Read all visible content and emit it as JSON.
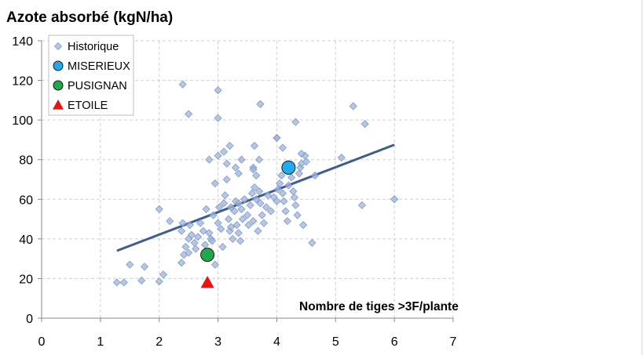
{
  "chart_data": {
    "type": "scatter",
    "title": "Azote absorbé (kgN/ha)",
    "xlabel": "Nombre de tiges >3F/plante",
    "ylabel": "",
    "xlim": [
      0,
      7
    ],
    "ylim": [
      0,
      140
    ],
    "x_ticks": [
      "0",
      "1",
      "2",
      "3",
      "4",
      "5",
      "6",
      "7"
    ],
    "y_ticks": [
      "0",
      "20",
      "40",
      "60",
      "80",
      "100",
      "120",
      "140"
    ],
    "grid": true,
    "legend_position": "top-left",
    "series": [
      {
        "name": "Historique",
        "marker": "diamond",
        "color": "#9db4de",
        "points": [
          [
            1.28,
            18
          ],
          [
            1.4,
            18
          ],
          [
            1.5,
            27
          ],
          [
            1.7,
            19
          ],
          [
            1.75,
            26
          ],
          [
            2.0,
            18.5
          ],
          [
            2.07,
            22
          ],
          [
            2.0,
            55
          ],
          [
            2.18,
            49
          ],
          [
            2.38,
            28
          ],
          [
            2.38,
            44
          ],
          [
            2.4,
            48
          ],
          [
            2.42,
            32
          ],
          [
            2.45,
            36
          ],
          [
            2.5,
            40
          ],
          [
            2.5,
            33
          ],
          [
            2.52,
            47
          ],
          [
            2.55,
            42
          ],
          [
            2.6,
            38
          ],
          [
            2.62,
            35
          ],
          [
            2.66,
            41
          ],
          [
            2.7,
            48
          ],
          [
            2.75,
            44
          ],
          [
            2.78,
            37
          ],
          [
            2.8,
            55
          ],
          [
            2.85,
            43
          ],
          [
            2.88,
            40
          ],
          [
            2.9,
            39
          ],
          [
            2.92,
            52
          ],
          [
            2.95,
            68
          ],
          [
            3.0,
            48
          ],
          [
            3.02,
            56
          ],
          [
            3.05,
            45
          ],
          [
            3.08,
            36
          ],
          [
            3.1,
            58
          ],
          [
            3.12,
            62
          ],
          [
            3.15,
            70
          ],
          [
            3.18,
            50
          ],
          [
            3.2,
            44
          ],
          [
            3.22,
            46
          ],
          [
            3.25,
            40
          ],
          [
            3.28,
            54
          ],
          [
            3.3,
            59
          ],
          [
            3.32,
            47
          ],
          [
            3.35,
            43
          ],
          [
            3.38,
            39
          ],
          [
            3.4,
            55
          ],
          [
            3.42,
            50
          ],
          [
            3.45,
            60
          ],
          [
            3.5,
            52
          ],
          [
            3.52,
            47
          ],
          [
            3.55,
            57
          ],
          [
            3.58,
            63
          ],
          [
            3.6,
            49
          ],
          [
            3.62,
            66
          ],
          [
            3.65,
            60
          ],
          [
            3.68,
            44
          ],
          [
            3.7,
            64
          ],
          [
            3.72,
            58
          ],
          [
            3.75,
            52
          ],
          [
            3.78,
            48
          ],
          [
            3.82,
            56
          ],
          [
            3.85,
            62
          ],
          [
            3.9,
            54
          ],
          [
            3.95,
            61
          ],
          [
            4.0,
            59
          ],
          [
            4.02,
            65
          ],
          [
            4.05,
            68
          ],
          [
            4.08,
            72
          ],
          [
            4.1,
            63
          ],
          [
            4.12,
            59
          ],
          [
            4.15,
            54
          ],
          [
            4.18,
            49
          ],
          [
            4.2,
            67
          ],
          [
            4.25,
            71
          ],
          [
            4.28,
            64
          ],
          [
            4.3,
            61
          ],
          [
            4.32,
            57
          ],
          [
            4.35,
            52
          ],
          [
            4.38,
            73
          ],
          [
            4.4,
            76
          ],
          [
            4.42,
            78
          ],
          [
            4.45,
            47
          ],
          [
            4.48,
            82
          ],
          [
            4.5,
            79
          ],
          [
            4.6,
            38
          ],
          [
            4.65,
            72
          ],
          [
            2.4,
            118
          ],
          [
            2.5,
            103
          ],
          [
            3.0,
            115
          ],
          [
            3.0,
            101
          ],
          [
            3.72,
            108
          ],
          [
            4.32,
            99
          ],
          [
            4.0,
            91
          ],
          [
            4.1,
            86
          ],
          [
            3.62,
            87
          ],
          [
            2.85,
            80
          ],
          [
            3.0,
            82
          ],
          [
            3.1,
            84
          ],
          [
            3.15,
            78
          ],
          [
            3.2,
            87
          ],
          [
            3.3,
            76
          ],
          [
            3.35,
            73
          ],
          [
            3.4,
            80
          ],
          [
            3.6,
            76
          ],
          [
            3.65,
            72
          ],
          [
            3.7,
            80
          ],
          [
            5.3,
            107
          ],
          [
            5.5,
            98
          ],
          [
            5.1,
            81
          ],
          [
            5.45,
            57
          ],
          [
            6.0,
            60
          ],
          [
            4.0,
            91
          ],
          [
            4.42,
            83
          ],
          [
            3.6,
            75
          ],
          [
            3.22,
            56
          ],
          [
            3.35,
            58
          ],
          [
            2.95,
            27
          ]
        ]
      },
      {
        "name": "MISERIEUX",
        "marker": "circle",
        "color": "#22aaee",
        "points": [
          [
            4.2,
            76
          ]
        ]
      },
      {
        "name": "PUSIGNAN",
        "marker": "circle",
        "color": "#22a84a",
        "points": [
          [
            2.82,
            32
          ]
        ]
      },
      {
        "name": "ETOILE",
        "marker": "triangle",
        "color": "#ee1111",
        "points": [
          [
            2.82,
            18
          ]
        ]
      }
    ],
    "trendline": {
      "x": [
        1.28,
        6.0
      ],
      "y": [
        34,
        87.5
      ],
      "color": "#3d5d92"
    }
  }
}
